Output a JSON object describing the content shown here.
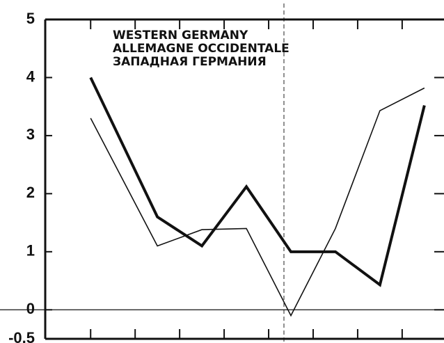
{
  "chart_data": {
    "type": "line",
    "title": [
      "WESTERN GERMANY",
      "ALLEMAGNE OCCIDENTALE",
      "ЗАПАДНАЯ ГЕРМАНИЯ"
    ],
    "x": [
      0,
      1.5,
      2.5,
      3.5,
      4.5,
      5.5,
      6.5,
      7.5
    ],
    "series": [
      {
        "color": "#111111",
        "width": 4,
        "values": [
          4.0,
          1.6,
          1.1,
          2.12,
          1.0,
          1.0,
          0.43,
          3.52
        ]
      },
      {
        "color": "#111111",
        "width": 1.6,
        "values": [
          3.3,
          1.1,
          1.38,
          1.4,
          -0.1,
          1.4,
          3.43,
          3.82
        ]
      }
    ],
    "xlim": [
      -1.02,
      7.94
    ],
    "xticks": [
      0,
      1,
      2,
      3,
      4,
      5,
      6,
      7
    ],
    "ylim": [
      -0.5,
      5
    ],
    "yticks": [
      5,
      4,
      3,
      2,
      1,
      0,
      {
        "value": -0.5,
        "label": "-0.5"
      }
    ]
  }
}
